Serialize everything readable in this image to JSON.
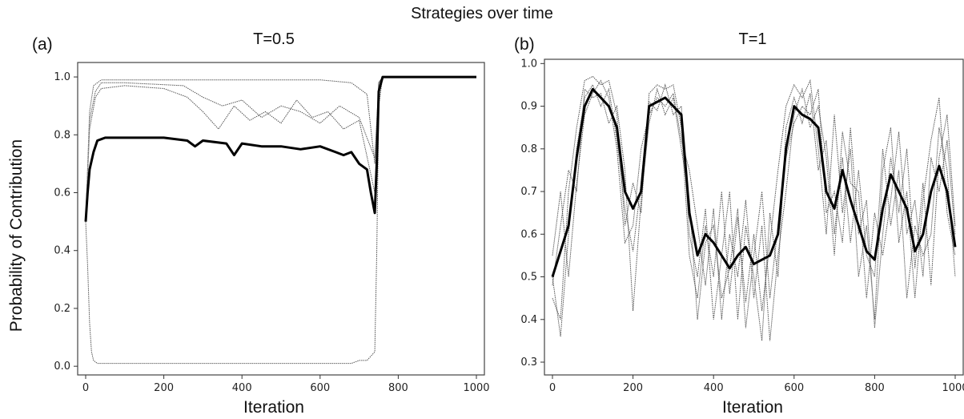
{
  "figure_title": "Strategies over time",
  "chart_data": [
    {
      "type": "line",
      "panel_label": "(a)",
      "title": "T=0.5",
      "xlabel": "Iteration",
      "ylabel": "Probability of Contribution",
      "xlim": [
        0,
        1000
      ],
      "ylim": [
        -0.03,
        1.05
      ],
      "xticks": [
        0,
        200,
        400,
        600,
        800,
        1000
      ],
      "yticks": [
        0.0,
        0.2,
        0.4,
        0.6,
        0.8,
        1.0
      ],
      "ytick_labels": [
        "0.0",
        "0.2",
        "0.4",
        "0.6",
        "0.8",
        "1.0"
      ],
      "mean_series": {
        "style": "thick solid black",
        "x": [
          0,
          5,
          10,
          20,
          30,
          50,
          100,
          150,
          200,
          260,
          280,
          300,
          360,
          380,
          400,
          450,
          500,
          550,
          600,
          640,
          660,
          680,
          700,
          720,
          730,
          740,
          745,
          750,
          760,
          780,
          800,
          900,
          1000
        ],
        "y": [
          0.5,
          0.6,
          0.68,
          0.74,
          0.78,
          0.79,
          0.79,
          0.79,
          0.79,
          0.78,
          0.76,
          0.78,
          0.77,
          0.73,
          0.77,
          0.76,
          0.76,
          0.75,
          0.76,
          0.74,
          0.73,
          0.74,
          0.7,
          0.68,
          0.6,
          0.53,
          0.7,
          0.95,
          1.0,
          1.0,
          1.0,
          1.0,
          1.0
        ]
      },
      "individual_series": [
        {
          "x": [
            0,
            10,
            20,
            40,
            100,
            300,
            500,
            600,
            680,
            700,
            720,
            740,
            750,
            760,
            1000
          ],
          "y": [
            0.5,
            0.88,
            0.97,
            0.99,
            0.99,
            0.99,
            0.99,
            0.99,
            0.98,
            0.96,
            0.94,
            0.7,
            0.98,
            1.0,
            1.0
          ]
        },
        {
          "x": [
            0,
            10,
            25,
            40,
            100,
            250,
            300,
            350,
            400,
            450,
            500,
            550,
            600,
            650,
            700,
            740,
            750,
            760,
            1000
          ],
          "y": [
            0.5,
            0.85,
            0.95,
            0.98,
            0.98,
            0.97,
            0.93,
            0.9,
            0.92,
            0.86,
            0.9,
            0.88,
            0.84,
            0.9,
            0.86,
            0.72,
            0.97,
            1.0,
            1.0
          ]
        },
        {
          "x": [
            0,
            10,
            25,
            40,
            100,
            200,
            260,
            300,
            340,
            380,
            420,
            460,
            500,
            540,
            580,
            620,
            660,
            700,
            740,
            750,
            760,
            1000
          ],
          "y": [
            0.5,
            0.82,
            0.93,
            0.96,
            0.97,
            0.96,
            0.93,
            0.88,
            0.82,
            0.9,
            0.85,
            0.88,
            0.84,
            0.92,
            0.86,
            0.88,
            0.82,
            0.85,
            0.6,
            0.98,
            1.0,
            1.0
          ]
        },
        {
          "x": [
            0,
            5,
            10,
            15,
            20,
            30,
            50,
            200,
            400,
            600,
            680,
            700,
            720,
            740,
            745,
            750,
            760,
            1000
          ],
          "y": [
            0.5,
            0.35,
            0.15,
            0.05,
            0.02,
            0.01,
            0.01,
            0.01,
            0.01,
            0.01,
            0.01,
            0.02,
            0.02,
            0.05,
            0.4,
            0.9,
            1.0,
            1.0
          ]
        }
      ]
    },
    {
      "type": "line",
      "panel_label": "(b)",
      "title": "T=1",
      "xlabel": "Iteration",
      "ylabel": "",
      "xlim": [
        0,
        1000
      ],
      "ylim": [
        0.27,
        1.01
      ],
      "xticks": [
        0,
        200,
        400,
        600,
        800,
        1000
      ],
      "yticks": [
        0.3,
        0.4,
        0.5,
        0.6,
        0.7,
        0.8,
        0.9,
        1.0
      ],
      "ytick_labels": [
        "0.3",
        "0.4",
        "0.5",
        "0.6",
        "0.7",
        "0.8",
        "0.9",
        "1.0"
      ],
      "mean_series": {
        "style": "thick solid black",
        "x": [
          0,
          20,
          40,
          60,
          80,
          100,
          120,
          140,
          160,
          180,
          200,
          220,
          240,
          260,
          280,
          300,
          320,
          340,
          360,
          380,
          400,
          420,
          440,
          460,
          480,
          500,
          520,
          540,
          560,
          580,
          600,
          620,
          640,
          660,
          680,
          700,
          720,
          740,
          760,
          780,
          800,
          820,
          840,
          860,
          880,
          900,
          920,
          940,
          960,
          980,
          1000
        ],
        "y": [
          0.5,
          0.56,
          0.62,
          0.78,
          0.9,
          0.94,
          0.92,
          0.9,
          0.85,
          0.7,
          0.66,
          0.7,
          0.9,
          0.91,
          0.92,
          0.9,
          0.88,
          0.65,
          0.55,
          0.6,
          0.58,
          0.55,
          0.52,
          0.55,
          0.57,
          0.53,
          0.54,
          0.55,
          0.6,
          0.8,
          0.9,
          0.88,
          0.87,
          0.85,
          0.7,
          0.66,
          0.75,
          0.68,
          0.62,
          0.56,
          0.54,
          0.66,
          0.74,
          0.7,
          0.66,
          0.56,
          0.6,
          0.7,
          0.76,
          0.7,
          0.57
        ]
      },
      "individual_series": [
        {
          "x": [
            0,
            20,
            40,
            60,
            80,
            100,
            120,
            140,
            160,
            180,
            200,
            220,
            240,
            260,
            280,
            300,
            320,
            340,
            360,
            380,
            400,
            420,
            440,
            460,
            480,
            500,
            520,
            540,
            560,
            580,
            600,
            620,
            640,
            660,
            680,
            700,
            720,
            740,
            760,
            780,
            800,
            820,
            840,
            860,
            880,
            900,
            920,
            940,
            960,
            980,
            1000
          ],
          "y": [
            0.45,
            0.4,
            0.7,
            0.85,
            0.96,
            0.97,
            0.95,
            0.96,
            0.88,
            0.62,
            0.72,
            0.65,
            0.93,
            0.95,
            0.94,
            0.95,
            0.85,
            0.55,
            0.45,
            0.62,
            0.5,
            0.7,
            0.46,
            0.64,
            0.44,
            0.6,
            0.42,
            0.58,
            0.75,
            0.9,
            0.95,
            0.92,
            0.96,
            0.8,
            0.6,
            0.88,
            0.65,
            0.8,
            0.5,
            0.62,
            0.4,
            0.75,
            0.85,
            0.58,
            0.7,
            0.45,
            0.68,
            0.82,
            0.92,
            0.65,
            0.55
          ]
        },
        {
          "x": [
            0,
            20,
            40,
            60,
            80,
            100,
            120,
            140,
            160,
            180,
            200,
            220,
            240,
            260,
            280,
            300,
            320,
            340,
            360,
            380,
            400,
            420,
            440,
            460,
            480,
            500,
            520,
            540,
            560,
            580,
            600,
            620,
            640,
            660,
            680,
            700,
            720,
            740,
            760,
            780,
            800,
            820,
            840,
            860,
            880,
            900,
            920,
            940,
            960,
            980,
            1000
          ],
          "y": [
            0.55,
            0.7,
            0.5,
            0.72,
            0.88,
            0.93,
            0.96,
            0.92,
            0.8,
            0.58,
            0.62,
            0.8,
            0.88,
            0.92,
            0.9,
            0.93,
            0.82,
            0.75,
            0.62,
            0.48,
            0.66,
            0.4,
            0.6,
            0.5,
            0.68,
            0.45,
            0.62,
            0.35,
            0.55,
            0.7,
            0.88,
            0.94,
            0.85,
            0.9,
            0.78,
            0.55,
            0.84,
            0.72,
            0.7,
            0.45,
            0.65,
            0.55,
            0.68,
            0.84,
            0.6,
            0.68,
            0.5,
            0.78,
            0.7,
            0.82,
            0.6
          ]
        },
        {
          "x": [
            0,
            20,
            40,
            60,
            80,
            100,
            120,
            140,
            160,
            180,
            200,
            220,
            240,
            260,
            280,
            300,
            320,
            340,
            360,
            380,
            400,
            420,
            440,
            460,
            480,
            500,
            520,
            540,
            560,
            580,
            600,
            620,
            640,
            660,
            680,
            700,
            720,
            740,
            760,
            780,
            800,
            820,
            840,
            860,
            880,
            900,
            920,
            940,
            960,
            980,
            1000
          ],
          "y": [
            0.5,
            0.36,
            0.6,
            0.8,
            0.92,
            0.95,
            0.9,
            0.94,
            0.82,
            0.66,
            0.56,
            0.72,
            0.91,
            0.89,
            0.95,
            0.88,
            0.9,
            0.6,
            0.5,
            0.66,
            0.4,
            0.55,
            0.7,
            0.4,
            0.62,
            0.5,
            0.35,
            0.65,
            0.5,
            0.85,
            0.92,
            0.86,
            0.93,
            0.75,
            0.82,
            0.6,
            0.78,
            0.58,
            0.75,
            0.55,
            0.5,
            0.8,
            0.62,
            0.75,
            0.45,
            0.62,
            0.55,
            0.6,
            0.85,
            0.75,
            0.5
          ]
        },
        {
          "x": [
            0,
            20,
            40,
            60,
            80,
            100,
            120,
            140,
            160,
            180,
            200,
            220,
            240,
            260,
            280,
            300,
            320,
            340,
            360,
            380,
            400,
            420,
            440,
            460,
            480,
            500,
            520,
            540,
            560,
            580,
            600,
            620,
            640,
            660,
            680,
            700,
            720,
            740,
            760,
            780,
            800,
            820,
            840,
            860,
            880,
            900,
            920,
            940,
            960,
            980,
            1000
          ],
          "y": [
            0.48,
            0.62,
            0.75,
            0.7,
            0.94,
            0.92,
            0.93,
            0.86,
            0.9,
            0.75,
            0.42,
            0.68,
            0.86,
            0.94,
            0.88,
            0.92,
            0.8,
            0.68,
            0.4,
            0.58,
            0.62,
            0.45,
            0.52,
            0.66,
            0.38,
            0.55,
            0.7,
            0.45,
            0.62,
            0.78,
            0.86,
            0.9,
            0.88,
            0.94,
            0.65,
            0.7,
            0.58,
            0.85,
            0.6,
            0.68,
            0.38,
            0.6,
            0.78,
            0.65,
            0.8,
            0.52,
            0.72,
            0.48,
            0.78,
            0.88,
            0.62
          ]
        }
      ]
    }
  ]
}
